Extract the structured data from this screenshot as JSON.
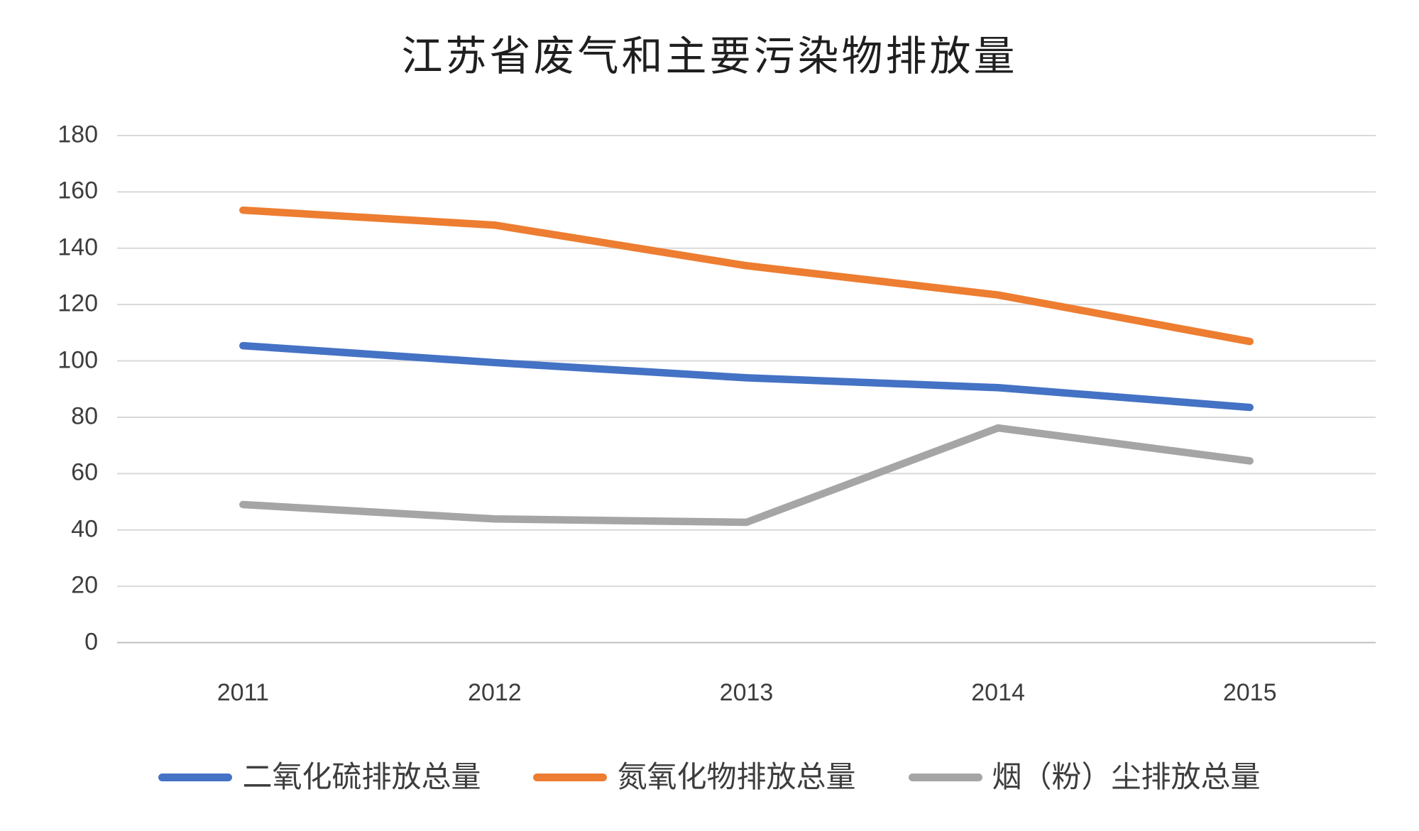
{
  "chart_data": {
    "type": "line",
    "title": "江苏省废气和主要污染物排放量",
    "categories": [
      "2011",
      "2012",
      "2013",
      "2014",
      "2015"
    ],
    "series": [
      {
        "name": "二氧化硫排放总量",
        "color": "#4472C4",
        "values": [
          105.4,
          99.4,
          94.0,
          90.5,
          83.5
        ]
      },
      {
        "name": "氮氧化物排放总量",
        "color": "#ED7D31",
        "values": [
          153.5,
          148.2,
          133.8,
          123.4,
          106.9
        ]
      },
      {
        "name": "烟（粉）尘排放总量",
        "color": "#A5A5A5",
        "values": [
          49.0,
          43.9,
          42.7,
          76.2,
          64.5
        ]
      }
    ],
    "ylim": [
      0,
      180
    ],
    "yticks": [
      180,
      160,
      140,
      120,
      100,
      80,
      60,
      40,
      20,
      0
    ],
    "xlabel": "",
    "ylabel": "",
    "grid": true,
    "grid_color": "#D9D9D9",
    "axis_line_color": "#BFBFBF",
    "legend_position": "bottom"
  }
}
